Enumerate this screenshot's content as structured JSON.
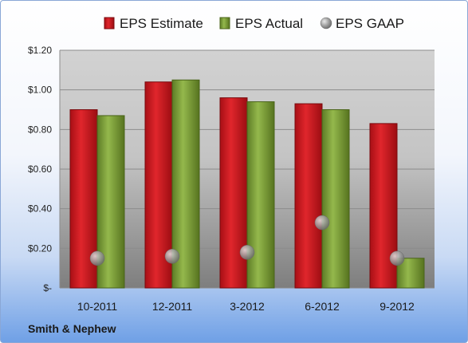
{
  "chart_data": {
    "type": "bar",
    "categories": [
      "10-2011",
      "12-2011",
      "3-2012",
      "6-2012",
      "9-2012"
    ],
    "series": [
      {
        "name": "EPS Estimate",
        "type": "bar",
        "color": "#c8161d",
        "values": [
          0.9,
          1.04,
          0.96,
          0.93,
          0.83
        ]
      },
      {
        "name": "EPS Actual",
        "type": "bar",
        "color": "#7ea03c",
        "values": [
          0.87,
          1.05,
          0.94,
          0.9,
          0.15
        ]
      },
      {
        "name": "EPS GAAP",
        "type": "marker",
        "color": "#9a9a9a",
        "values": [
          0.15,
          0.16,
          0.18,
          0.33,
          0.15
        ]
      }
    ],
    "ylim": [
      0,
      1.2
    ],
    "yticks": [
      0,
      0.2,
      0.4,
      0.6,
      0.8,
      1.0,
      1.2
    ],
    "ytick_labels": [
      "$-",
      "$0.20",
      "$0.40",
      "$0.60",
      "$0.80",
      "$1.00",
      "$1.20"
    ],
    "legend_position": "top",
    "grid": true,
    "title": "",
    "xlabel": "",
    "ylabel": ""
  },
  "footer": {
    "company": "Smith & Nephew"
  }
}
